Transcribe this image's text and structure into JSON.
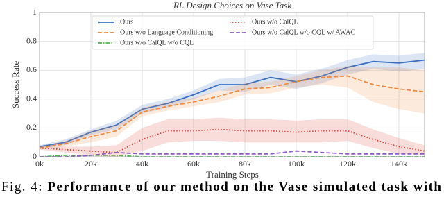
{
  "chart_data": {
    "type": "line",
    "title": "RL Design Choices on Vase Task",
    "xlabel": "Training Steps",
    "ylabel": "Success Rate",
    "x": [
      0,
      10000,
      20000,
      30000,
      40000,
      50000,
      60000,
      70000,
      80000,
      90000,
      100000,
      110000,
      120000,
      130000,
      140000,
      150000
    ],
    "xlim": [
      0,
      150000
    ],
    "xticks": [
      {
        "value": 0,
        "label": "0k"
      },
      {
        "value": 20000,
        "label": "20k"
      },
      {
        "value": 40000,
        "label": "40k"
      },
      {
        "value": 60000,
        "label": "60k"
      },
      {
        "value": 80000,
        "label": "80k"
      },
      {
        "value": 100000,
        "label": "100k"
      },
      {
        "value": 120000,
        "label": "120k"
      },
      {
        "value": 140000,
        "label": "140k"
      }
    ],
    "ylim": [
      0,
      1
    ],
    "yticks": [
      0,
      0.2,
      0.4,
      0.6,
      0.8,
      1
    ],
    "grid": true,
    "series": [
      {
        "name": "Ours",
        "color": "#3b6fc2",
        "style": "solid",
        "values": [
          0.07,
          0.1,
          0.17,
          0.22,
          0.33,
          0.37,
          0.43,
          0.5,
          0.5,
          0.55,
          0.52,
          0.56,
          0.62,
          0.66,
          0.65,
          0.67
        ],
        "lower": [
          0.06,
          0.08,
          0.15,
          0.19,
          0.3,
          0.34,
          0.4,
          0.46,
          0.45,
          0.5,
          0.47,
          0.51,
          0.57,
          0.61,
          0.59,
          0.61
        ],
        "upper": [
          0.08,
          0.12,
          0.19,
          0.25,
          0.36,
          0.4,
          0.46,
          0.54,
          0.55,
          0.6,
          0.57,
          0.61,
          0.67,
          0.71,
          0.7,
          0.72
        ]
      },
      {
        "name": "Ours w/o Language Conditioning",
        "color": "#f08a3e",
        "style": "dashed",
        "values": [
          0.06,
          0.09,
          0.14,
          0.18,
          0.31,
          0.35,
          0.38,
          0.42,
          0.47,
          0.48,
          0.52,
          0.55,
          0.56,
          0.5,
          0.47,
          0.45
        ],
        "lower": [
          0.05,
          0.07,
          0.1,
          0.14,
          0.28,
          0.32,
          0.35,
          0.38,
          0.43,
          0.44,
          0.48,
          0.5,
          0.48,
          0.38,
          0.33,
          0.3
        ],
        "upper": [
          0.07,
          0.11,
          0.18,
          0.22,
          0.34,
          0.38,
          0.41,
          0.46,
          0.51,
          0.52,
          0.56,
          0.6,
          0.63,
          0.62,
          0.62,
          0.6
        ]
      },
      {
        "name": "Ours w/o CalQL w/o CQL",
        "color": "#4cb84c",
        "style": "dashdot",
        "values": [
          0,
          0.01,
          0.01,
          0.01,
          0,
          0,
          0,
          0,
          0,
          0,
          0,
          0,
          0,
          0,
          0,
          0
        ]
      },
      {
        "name": "Ours w/o CalQL",
        "color": "#d6433a",
        "style": "dotted",
        "values": [
          0.06,
          0.05,
          0.04,
          0.03,
          0.12,
          0.18,
          0.18,
          0.19,
          0.18,
          0.18,
          0.17,
          0.18,
          0.18,
          0.12,
          0.07,
          0.04
        ],
        "lower": [
          0.05,
          0.03,
          0.01,
          0,
          0.04,
          0.1,
          0.11,
          0.11,
          0.1,
          0.1,
          0.1,
          0.1,
          0.11,
          0.06,
          0.02,
          0.01
        ],
        "upper": [
          0.07,
          0.07,
          0.07,
          0.08,
          0.2,
          0.26,
          0.26,
          0.27,
          0.26,
          0.26,
          0.25,
          0.26,
          0.26,
          0.19,
          0.13,
          0.08
        ]
      },
      {
        "name": "Ours w/o CalQL w/o CQL w/ AWAC",
        "color": "#8e5ac4",
        "style": "dashed",
        "values": [
          0,
          0,
          0.01,
          0.03,
          0.02,
          0.02,
          0.02,
          0.02,
          0.02,
          0.02,
          0.04,
          0.03,
          0.02,
          0.02,
          0.02,
          0.02
        ]
      }
    ],
    "caption_label": "Fig. 4:",
    "caption_text": "Performance of our method on the Vase simulated task with"
  }
}
